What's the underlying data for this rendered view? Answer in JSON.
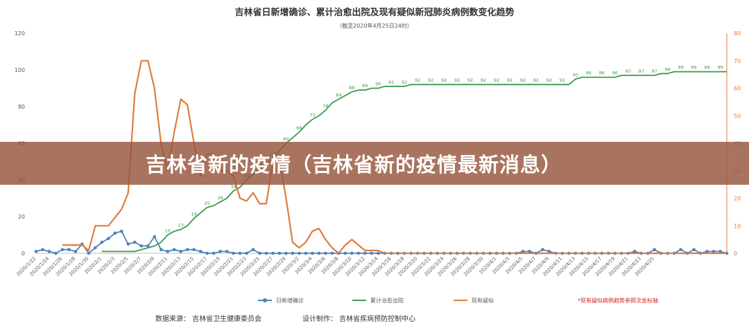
{
  "chart_data": {
    "type": "line",
    "title": "吉林省日新增确诊、累计治愈出院及现有疑似新冠肺炎病例数变化趋势",
    "subtitle": "（截至2020年4月25日24时）",
    "x_start": "2020/1/22",
    "x_end": "2020/4/25",
    "x_tick_labels": [
      "2020/1/22",
      "2020/1/24",
      "2020/1/26",
      "2020/1/28",
      "2020/1/30",
      "2020/2/1",
      "2020/2/3",
      "2020/2/5",
      "2020/2/7",
      "2020/2/9",
      "2020/2/11",
      "2020/2/13",
      "2020/2/15",
      "2020/2/17",
      "2020/2/19",
      "2020/2/21",
      "2020/2/23",
      "2020/2/25",
      "2020/2/27",
      "2020/2/29",
      "2020/3/2",
      "2020/3/4",
      "2020/3/6",
      "2020/3/8",
      "2020/3/10",
      "2020/3/12",
      "2020/3/14",
      "2020/3/16",
      "2020/3/18",
      "2020/3/20",
      "2020/3/22",
      "2020/3/24",
      "2020/3/26",
      "2020/3/28",
      "2020/3/30",
      "2020/4/1",
      "2020/4/3",
      "2020/4/5",
      "2020/4/7",
      "2020/4/9",
      "2020/4/11",
      "2020/4/13",
      "2020/4/15",
      "2020/4/17",
      "2020/4/19",
      "2020/4/21",
      "2020/4/23",
      "2020/4/25"
    ],
    "y_left": {
      "range": [
        0,
        120
      ],
      "ticks": [
        0,
        20,
        40,
        60,
        80,
        100,
        120
      ]
    },
    "y_right": {
      "range": [
        0,
        80
      ],
      "ticks": [
        0,
        10,
        20,
        30,
        40,
        50,
        60,
        70,
        80
      ]
    },
    "grid": false,
    "legend_position": "bottom",
    "series": [
      {
        "name": "日新增确诊",
        "axis": "left",
        "color": "#4f81bd",
        "values": [
          1,
          2,
          1,
          0,
          2,
          2,
          1,
          5,
          0,
          3,
          6,
          8,
          11,
          12,
          5,
          6,
          4,
          4,
          9,
          2,
          1,
          2,
          1,
          2,
          2,
          1,
          0,
          0,
          1,
          1,
          0,
          0,
          0,
          2,
          0,
          0,
          0,
          0,
          0,
          0,
          0,
          0,
          0,
          0,
          0,
          0,
          0,
          0,
          0,
          0,
          0,
          0,
          0,
          0,
          0,
          0,
          0,
          0,
          0,
          0,
          0,
          0,
          0,
          0,
          0,
          0,
          0,
          0,
          0,
          0,
          0,
          0,
          0,
          0,
          1,
          1,
          0,
          2,
          1,
          0,
          0,
          0,
          0,
          0,
          0,
          0,
          0,
          0,
          0,
          0,
          0,
          1,
          0,
          0,
          2,
          0,
          0,
          0,
          2,
          0,
          2,
          0,
          1,
          1,
          1,
          0
        ]
      },
      {
        "name": "累计治愈出院",
        "axis": "left",
        "color": "#3a9a4a",
        "values": [
          null,
          null,
          null,
          null,
          null,
          null,
          null,
          null,
          null,
          null,
          1,
          1,
          1,
          1,
          1,
          1,
          2,
          3,
          4,
          6,
          10,
          12,
          13,
          15,
          19,
          22,
          25,
          26,
          28,
          30,
          34,
          36,
          40,
          43,
          46,
          48,
          52,
          56,
          60,
          63,
          66,
          70,
          73,
          75,
          78,
          82,
          84,
          86,
          88,
          89,
          89,
          90,
          90,
          91,
          91,
          91,
          91,
          92,
          92,
          92,
          92,
          92,
          92,
          92,
          92,
          92,
          92,
          92,
          92,
          92,
          92,
          92,
          92,
          92,
          92,
          92,
          92,
          92,
          92,
          92,
          92,
          92,
          95,
          96,
          96,
          96,
          96,
          96,
          96,
          97,
          97,
          97,
          97,
          97,
          97,
          98,
          98,
          99,
          99,
          99,
          99,
          99,
          99,
          99,
          99,
          99
        ]
      },
      {
        "name": "现有疑似",
        "axis": "right",
        "color": "#e07b3c",
        "values": [
          null,
          null,
          null,
          null,
          3,
          3,
          3,
          3,
          1,
          10,
          10,
          10,
          13,
          16,
          22,
          58,
          70,
          70,
          60,
          40,
          30,
          44,
          56,
          54,
          40,
          28,
          36,
          36,
          30,
          30,
          28,
          20,
          19,
          22,
          18,
          18,
          33,
          34,
          20,
          4,
          2,
          4,
          8,
          9,
          5,
          2,
          0,
          3,
          5,
          3,
          1,
          1,
          1,
          0,
          0,
          0,
          0,
          0,
          0,
          0,
          0,
          0,
          0,
          0,
          0,
          0,
          0,
          0,
          0,
          0,
          0,
          0,
          0,
          0,
          0,
          0,
          0,
          0,
          0,
          0,
          0,
          0,
          0,
          0,
          0,
          0,
          0,
          0,
          0,
          0,
          0,
          0,
          0,
          0,
          0,
          0,
          0,
          0,
          0,
          0,
          0,
          0,
          0,
          0,
          0,
          0
        ]
      }
    ],
    "footnote": "*现有疑似病例趋势参照次坐标轴"
  },
  "footer": {
    "source": "数据来源： 吉林省卫生健康委员会",
    "designer": "设计制作： 吉林省疾病预防控制中心"
  },
  "banner": {
    "text": "吉林省新的疫情（吉林省新的疫情最新消息）"
  }
}
